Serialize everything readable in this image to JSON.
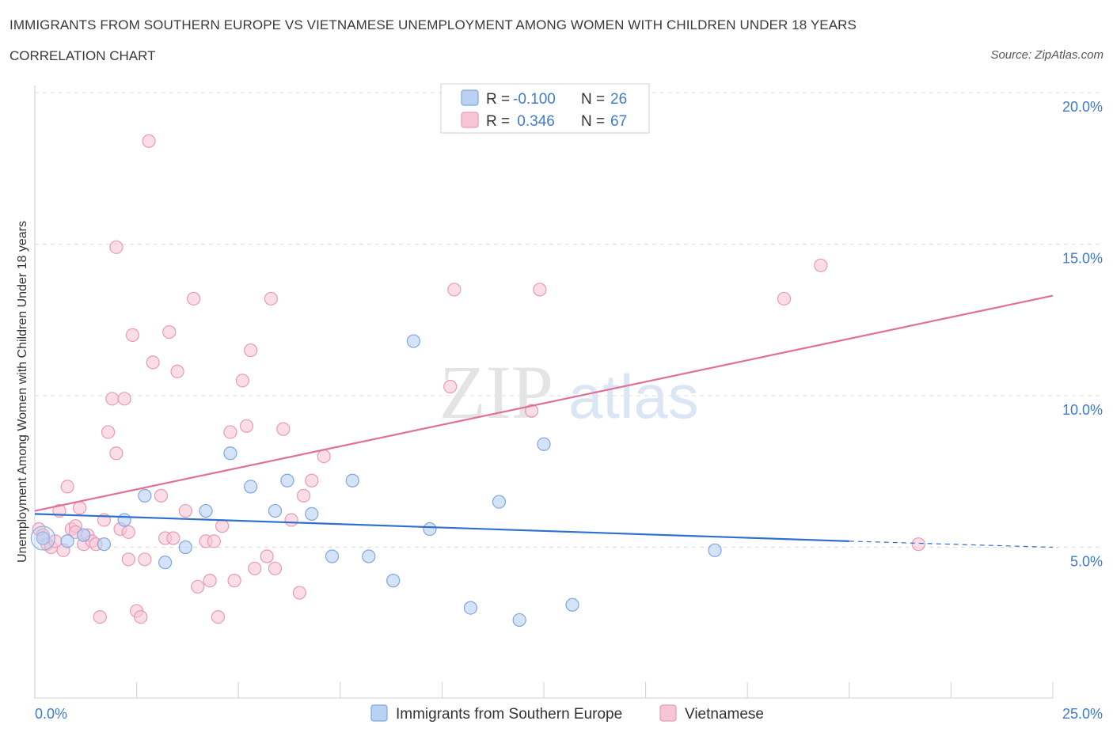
{
  "header": {
    "title": "IMMIGRANTS FROM SOUTHERN EUROPE VS VIETNAMESE UNEMPLOYMENT AMONG WOMEN WITH CHILDREN UNDER 18 YEARS",
    "subtitle": "CORRELATION CHART",
    "source": "Source: ZipAtlas.com"
  },
  "watermark": {
    "zip": "ZIP",
    "atlas": "atlas"
  },
  "colors": {
    "blue_fill": "#b9d1f3",
    "blue_stroke": "#7ea6e0",
    "blue_line": "#2f6fce",
    "pink_fill": "#f7c6d6",
    "pink_stroke": "#e99ab5",
    "pink_line": "#e07098",
    "tick_text": "#3d7bd0",
    "grid": "#dddddd"
  },
  "legend_box": {
    "rows": [
      {
        "r_label": "R = ",
        "r_value": "-0.100",
        "n_label": "N = ",
        "n_value": "26"
      },
      {
        "r_label": "R = ",
        "r_value": " 0.346",
        "n_label": "N = ",
        "n_value": "67"
      }
    ]
  },
  "chart_data": {
    "type": "scatter",
    "title": "IMMIGRANTS FROM SOUTHERN EUROPE VS VIETNAMESE UNEMPLOYMENT AMONG WOMEN WITH CHILDREN UNDER 18 YEARS",
    "xlabel": "",
    "ylabel": "Unemployment Among Women with Children Under 18 years",
    "xlim": [
      0,
      25
    ],
    "ylim": [
      0,
      20
    ],
    "x_tick_labels": [
      "0.0%",
      "25.0%"
    ],
    "y_ticks": [
      5,
      10,
      15,
      20
    ],
    "y_tick_labels": [
      "5.0%",
      "10.0%",
      "15.0%",
      "20.0%"
    ],
    "grid": true,
    "legend_position": "top-center",
    "series": [
      {
        "name": "Immigrants from Southern Europe",
        "r": -0.1,
        "n": 26,
        "trend": {
          "x_start": 0,
          "y_start": 6.1,
          "x_end": 20,
          "y_end": 5.2,
          "dashed_to_x": 25,
          "dashed_y_end": 5.0
        },
        "points": [
          [
            0.2,
            5.3
          ],
          [
            0.8,
            5.2
          ],
          [
            1.2,
            5.4
          ],
          [
            1.7,
            5.1
          ],
          [
            2.2,
            5.9
          ],
          [
            2.7,
            6.7
          ],
          [
            3.2,
            4.5
          ],
          [
            3.7,
            5.0
          ],
          [
            4.2,
            6.2
          ],
          [
            4.8,
            8.1
          ],
          [
            5.3,
            7.0
          ],
          [
            5.9,
            6.2
          ],
          [
            6.2,
            7.2
          ],
          [
            6.8,
            6.1
          ],
          [
            7.3,
            4.7
          ],
          [
            7.8,
            7.2
          ],
          [
            8.2,
            4.7
          ],
          [
            8.8,
            3.9
          ],
          [
            9.3,
            11.8
          ],
          [
            9.7,
            5.6
          ],
          [
            10.7,
            3.0
          ],
          [
            11.4,
            6.5
          ],
          [
            11.9,
            2.6
          ],
          [
            12.5,
            8.4
          ],
          [
            13.2,
            3.1
          ],
          [
            16.7,
            4.9
          ]
        ]
      },
      {
        "name": "Vietnamese",
        "r": 0.346,
        "n": 67,
        "trend": {
          "x_start": 0,
          "y_start": 6.2,
          "x_end": 25,
          "y_end": 13.3
        },
        "points": [
          [
            0.1,
            5.6
          ],
          [
            0.2,
            5.4
          ],
          [
            0.3,
            5.1
          ],
          [
            0.4,
            5.0
          ],
          [
            0.6,
            6.2
          ],
          [
            0.7,
            4.9
          ],
          [
            0.8,
            7.0
          ],
          [
            0.9,
            5.6
          ],
          [
            1.0,
            5.7
          ],
          [
            1.1,
            6.3
          ],
          [
            1.2,
            5.1
          ],
          [
            1.3,
            5.4
          ],
          [
            1.4,
            5.2
          ],
          [
            1.5,
            5.1
          ],
          [
            1.6,
            2.7
          ],
          [
            1.7,
            5.9
          ],
          [
            1.8,
            8.8
          ],
          [
            1.9,
            9.9
          ],
          [
            2.0,
            8.1
          ],
          [
            2.0,
            14.9
          ],
          [
            2.1,
            5.6
          ],
          [
            2.2,
            9.9
          ],
          [
            2.3,
            4.6
          ],
          [
            2.4,
            12.0
          ],
          [
            2.5,
            2.9
          ],
          [
            2.6,
            2.7
          ],
          [
            2.7,
            4.6
          ],
          [
            2.8,
            18.4
          ],
          [
            2.9,
            11.1
          ],
          [
            3.1,
            6.7
          ],
          [
            3.2,
            5.3
          ],
          [
            3.3,
            12.1
          ],
          [
            3.4,
            5.3
          ],
          [
            3.5,
            10.8
          ],
          [
            3.7,
            6.2
          ],
          [
            3.9,
            13.2
          ],
          [
            4.0,
            3.7
          ],
          [
            4.2,
            5.2
          ],
          [
            4.3,
            3.9
          ],
          [
            4.4,
            5.2
          ],
          [
            4.5,
            2.7
          ],
          [
            4.6,
            5.7
          ],
          [
            4.8,
            8.8
          ],
          [
            4.9,
            3.9
          ],
          [
            5.1,
            10.5
          ],
          [
            5.2,
            9.0
          ],
          [
            5.3,
            11.5
          ],
          [
            5.4,
            4.3
          ],
          [
            5.7,
            4.7
          ],
          [
            5.8,
            13.2
          ],
          [
            5.9,
            4.3
          ],
          [
            6.1,
            8.9
          ],
          [
            6.3,
            5.9
          ],
          [
            6.5,
            3.5
          ],
          [
            6.6,
            6.7
          ],
          [
            6.8,
            7.2
          ],
          [
            7.1,
            8.0
          ],
          [
            10.2,
            10.3
          ],
          [
            10.3,
            13.5
          ],
          [
            12.2,
            9.5
          ],
          [
            12.4,
            13.5
          ],
          [
            18.4,
            13.2
          ],
          [
            19.3,
            14.3
          ],
          [
            21.7,
            5.1
          ],
          [
            0.5,
            5.2
          ],
          [
            1.0,
            5.5
          ],
          [
            2.3,
            5.5
          ]
        ]
      }
    ]
  },
  "bottom_legend": {
    "items": [
      "Immigrants from Southern Europe",
      "Vietnamese"
    ]
  }
}
